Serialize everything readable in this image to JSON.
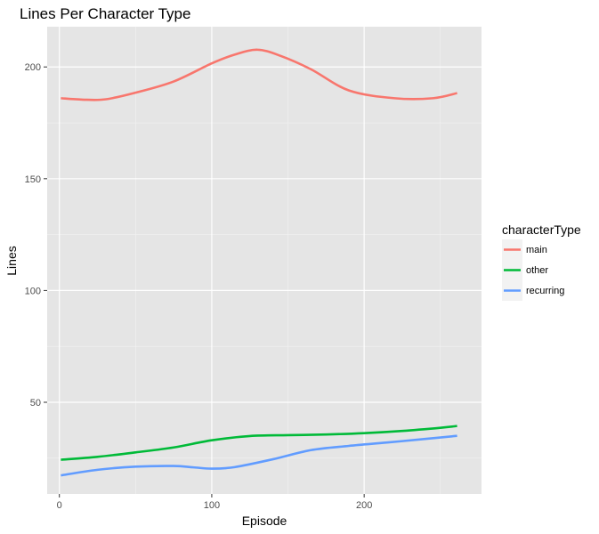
{
  "chart_data": {
    "type": "line",
    "title": "Lines Per Character Type",
    "xlabel": "Episode",
    "ylabel": "Lines",
    "xlim": [
      -8,
      277
    ],
    "ylim": [
      9,
      218
    ],
    "x_ticks": [
      0,
      100,
      200
    ],
    "y_ticks": [
      50,
      100,
      150,
      200
    ],
    "grid": true,
    "panel_background": "#e5e5e5",
    "legend": {
      "title": "characterType",
      "placement": "right"
    },
    "series": [
      {
        "name": "main",
        "color": "#f8766d",
        "x": [
          1,
          15,
          30,
          50,
          75,
          100,
          115,
          130,
          145,
          165,
          190,
          220,
          245,
          261
        ],
        "y": [
          186,
          185.4,
          185.5,
          188.5,
          193.5,
          201.6,
          205.5,
          207.7,
          205,
          199,
          189.5,
          186,
          186,
          188.3
        ]
      },
      {
        "name": "other",
        "color": "#00ba38",
        "x": [
          1,
          25,
          50,
          75,
          100,
          125,
          150,
          175,
          200,
          225,
          250,
          261
        ],
        "y": [
          24.3,
          25.6,
          27.6,
          29.8,
          33,
          34.9,
          35.3,
          35.6,
          36.2,
          37.2,
          38.6,
          39.4
        ]
      },
      {
        "name": "recurring",
        "color": "#619cff",
        "x": [
          1,
          25,
          50,
          75,
          88,
          100,
          115,
          140,
          165,
          190,
          215,
          240,
          261
        ],
        "y": [
          17.3,
          19.8,
          21.2,
          21.5,
          20.9,
          20.3,
          21,
          24.5,
          28.6,
          30.5,
          32,
          33.6,
          35
        ]
      }
    ]
  }
}
